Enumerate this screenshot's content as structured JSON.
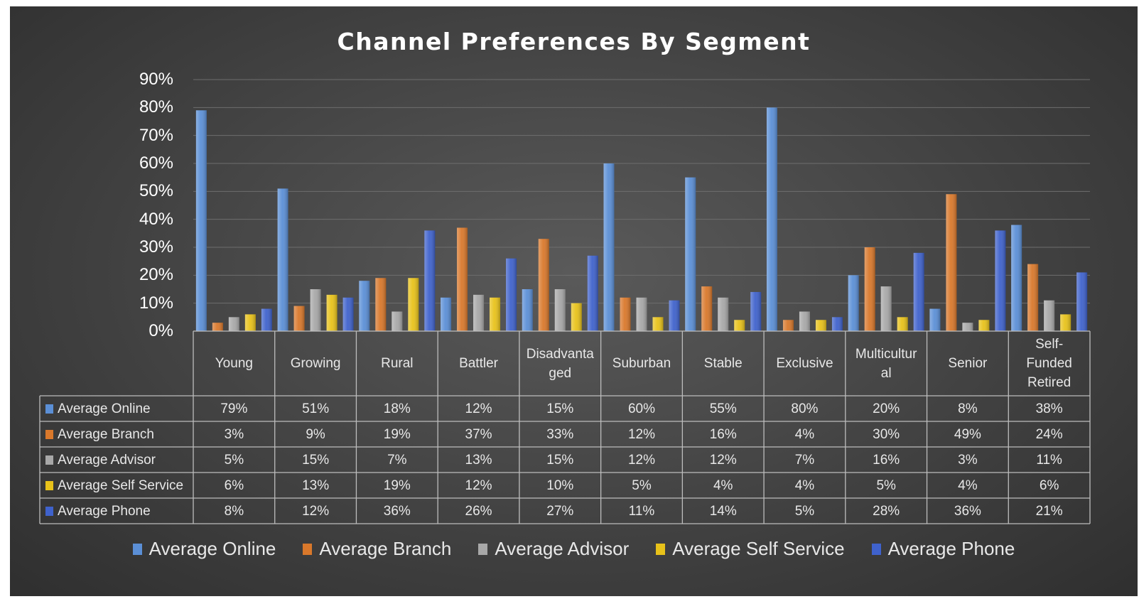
{
  "chart_data": {
    "type": "bar",
    "title": "Channel Preferences By Segment",
    "categories": [
      "Young",
      "Growing",
      "Rural",
      "Battler",
      "Disadvanta\nged",
      "Suburban",
      "Stable",
      "Exclusive",
      "Multicultur\nal",
      "Senior",
      "Self-\nFunded\nRetired"
    ],
    "series": [
      {
        "name": "Average Online",
        "color": "#5b8fd6",
        "values": [
          79,
          51,
          18,
          12,
          15,
          60,
          55,
          80,
          20,
          8,
          38
        ],
        "labels": [
          "79%",
          "51%",
          "18%",
          "12%",
          "15%",
          "60%",
          "55%",
          "80%",
          "20%",
          "8%",
          "38%"
        ]
      },
      {
        "name": "Average Branch",
        "color": "#d9782b",
        "values": [
          3,
          9,
          19,
          37,
          33,
          12,
          16,
          4,
          30,
          49,
          24
        ],
        "labels": [
          "3%",
          "9%",
          "19%",
          "37%",
          "33%",
          "12%",
          "16%",
          "4%",
          "30%",
          "49%",
          "24%"
        ]
      },
      {
        "name": "Average Advisor",
        "color": "#a8a8a8",
        "values": [
          5,
          15,
          7,
          13,
          15,
          12,
          12,
          7,
          16,
          3,
          11
        ],
        "labels": [
          "5%",
          "15%",
          "7%",
          "13%",
          "15%",
          "12%",
          "12%",
          "7%",
          "16%",
          "3%",
          "11%"
        ]
      },
      {
        "name": "Average Self Service",
        "color": "#e8c21a",
        "values": [
          6,
          13,
          19,
          12,
          10,
          5,
          4,
          4,
          5,
          4,
          6
        ],
        "labels": [
          "6%",
          "13%",
          "19%",
          "12%",
          "10%",
          "5%",
          "4%",
          "4%",
          "5%",
          "4%",
          "6%"
        ]
      },
      {
        "name": "Average Phone",
        "color": "#3f62cc",
        "values": [
          8,
          12,
          36,
          26,
          27,
          11,
          14,
          5,
          28,
          36,
          21
        ],
        "labels": [
          "8%",
          "12%",
          "36%",
          "26%",
          "27%",
          "11%",
          "14%",
          "5%",
          "28%",
          "36%",
          "21%"
        ]
      }
    ],
    "yticks": [
      "0%",
      "10%",
      "20%",
      "30%",
      "40%",
      "50%",
      "60%",
      "70%",
      "80%",
      "90%"
    ],
    "ylim": [
      0,
      90
    ],
    "grid": true,
    "legend_position": "bottom",
    "data_table": true
  }
}
